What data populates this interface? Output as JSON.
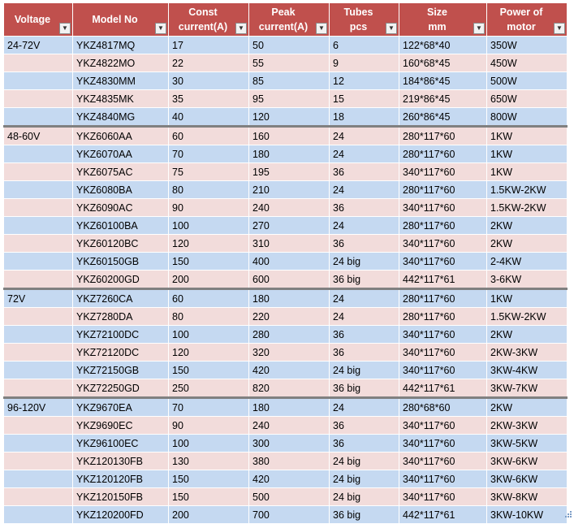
{
  "headers": [
    {
      "l1": "Voltage",
      "l2": ""
    },
    {
      "l1": "Model No",
      "l2": ""
    },
    {
      "l1": "Const",
      "l2": "current(A)"
    },
    {
      "l1": "Peak",
      "l2": "current(A)"
    },
    {
      "l1": "Tubes",
      "l2": "pcs"
    },
    {
      "l1": "Size",
      "l2": "mm"
    },
    {
      "l1": "Power of",
      "l2": "motor"
    }
  ],
  "filter_icon": "filter-dropdown-arrow",
  "colors": {
    "header_bg": "#c0504d",
    "band_blue": "#c5d9f1",
    "band_pink": "#f2dcdb",
    "group_divider": "#808080"
  },
  "rows": [
    [
      "24-72V",
      "YKZ4817MQ",
      "17",
      "50",
      "6",
      "122*68*40",
      "350W"
    ],
    [
      "",
      "YKZ4822MO",
      "22",
      "55",
      "9",
      "160*68*45",
      "450W"
    ],
    [
      "",
      "YKZ4830MM",
      "30",
      "85",
      "12",
      "184*86*45",
      "500W"
    ],
    [
      "",
      "YKZ4835MK",
      "35",
      "95",
      "15",
      "219*86*45",
      "650W"
    ],
    [
      "",
      "YKZ4840MG",
      "40",
      "120",
      "18",
      "260*86*45",
      "800W"
    ],
    [
      "48-60V",
      "YKZ6060AA",
      "60",
      "160",
      "24",
      "280*117*60",
      "1KW"
    ],
    [
      "",
      "YKZ6070AA",
      "70",
      "180",
      "24",
      "280*117*60",
      "1KW"
    ],
    [
      "",
      "YKZ6075AC",
      "75",
      "195",
      "36",
      "340*117*60",
      "1KW"
    ],
    [
      "",
      "YKZ6080BA",
      "80",
      "210",
      "24",
      "280*117*60",
      "1.5KW-2KW"
    ],
    [
      "",
      "YKZ6090AC",
      "90",
      "240",
      "36",
      "340*117*60",
      "1.5KW-2KW"
    ],
    [
      "",
      "YKZ60100BA",
      "100",
      "270",
      "24",
      "280*117*60",
      "2KW"
    ],
    [
      "",
      "YKZ60120BC",
      "120",
      "310",
      "36",
      "340*117*60",
      "2KW"
    ],
    [
      "",
      "YKZ60150GB",
      "150",
      "400",
      "24 big",
      "340*117*60",
      "2-4KW"
    ],
    [
      "",
      "YKZ60200GD",
      "200",
      "600",
      "36 big",
      "442*117*61",
      "3-6KW"
    ],
    [
      "72V",
      "YKZ7260CA",
      "60",
      "180",
      "24",
      "280*117*60",
      "1KW"
    ],
    [
      "",
      "YKZ7280DA",
      "80",
      "220",
      "24",
      "280*117*60",
      "1.5KW-2KW"
    ],
    [
      "",
      "YKZ72100DC",
      "100",
      "280",
      "36",
      "340*117*60",
      "2KW"
    ],
    [
      "",
      "YKZ72120DC",
      "120",
      "320",
      "36",
      "340*117*60",
      "2KW-3KW"
    ],
    [
      "",
      "YKZ72150GB",
      "150",
      "420",
      "24 big",
      "340*117*60",
      "3KW-4KW"
    ],
    [
      "",
      "YKZ72250GD",
      "250",
      "820",
      "36 big",
      "442*117*61",
      "3KW-7KW"
    ],
    [
      "96-120V",
      "YKZ9670EA",
      "70",
      "180",
      "24",
      "280*68*60",
      "2KW"
    ],
    [
      "",
      "YKZ9690EC",
      "90",
      "240",
      "36",
      "340*117*60",
      "2KW-3KW"
    ],
    [
      "",
      "YKZ96100EC",
      "100",
      "300",
      "36",
      "340*117*60",
      "3KW-5KW"
    ],
    [
      "",
      "YKZ120130FB",
      "130",
      "380",
      "24 big",
      "340*117*60",
      "3KW-6KW"
    ],
    [
      "",
      "YKZ120120FB",
      "150",
      "420",
      "24 big",
      "340*117*60",
      "3KW-6KW"
    ],
    [
      "",
      "YKZ120150FB",
      "150",
      "500",
      "24 big",
      "340*117*60",
      "3KW-8KW"
    ],
    [
      "",
      "YKZ120200FD",
      "200",
      "700",
      "36 big",
      "442*117*61",
      "3KW-10KW"
    ]
  ]
}
